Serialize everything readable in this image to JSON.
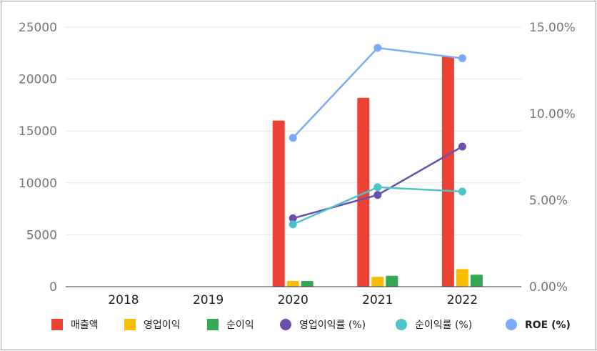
{
  "chart_data": {
    "type": "bar",
    "categories": [
      "2018",
      "2019",
      "2020",
      "2021",
      "2022"
    ],
    "series": [
      {
        "name": "매출액",
        "type": "bar",
        "axis": "left",
        "color": "#ea4335",
        "values": [
          null,
          null,
          16000,
          18200,
          22200
        ]
      },
      {
        "name": "영업이익",
        "type": "bar",
        "axis": "left",
        "color": "#fbbc04",
        "values": [
          null,
          null,
          550,
          950,
          1700
        ]
      },
      {
        "name": "순이익",
        "type": "bar",
        "axis": "left",
        "color": "#34a853",
        "values": [
          null,
          null,
          550,
          1050,
          1150
        ]
      },
      {
        "name": "영업이익률 (%)",
        "type": "line",
        "axis": "right",
        "color": "#6a4fae",
        "values": [
          null,
          null,
          3.95,
          5.3,
          8.1
        ]
      },
      {
        "name": "순이익률 (%)",
        "type": "line",
        "axis": "right",
        "color": "#4ec3c9",
        "values": [
          null,
          null,
          3.6,
          5.75,
          5.5
        ]
      },
      {
        "name": "ROE (%)",
        "type": "line",
        "axis": "right",
        "color": "#7baaf7",
        "values": [
          null,
          null,
          8.6,
          13.8,
          13.2
        ]
      }
    ],
    "y_left": {
      "min": 0,
      "max": 25000,
      "ticks": [
        "0",
        "5000",
        "10000",
        "15000",
        "20000",
        "25000"
      ]
    },
    "y_right": {
      "min": 0,
      "max": 15,
      "ticks": [
        "0.00%",
        "5.00%",
        "10.00%",
        "15.00%"
      ]
    },
    "grid": true,
    "legend_position": "bottom"
  }
}
